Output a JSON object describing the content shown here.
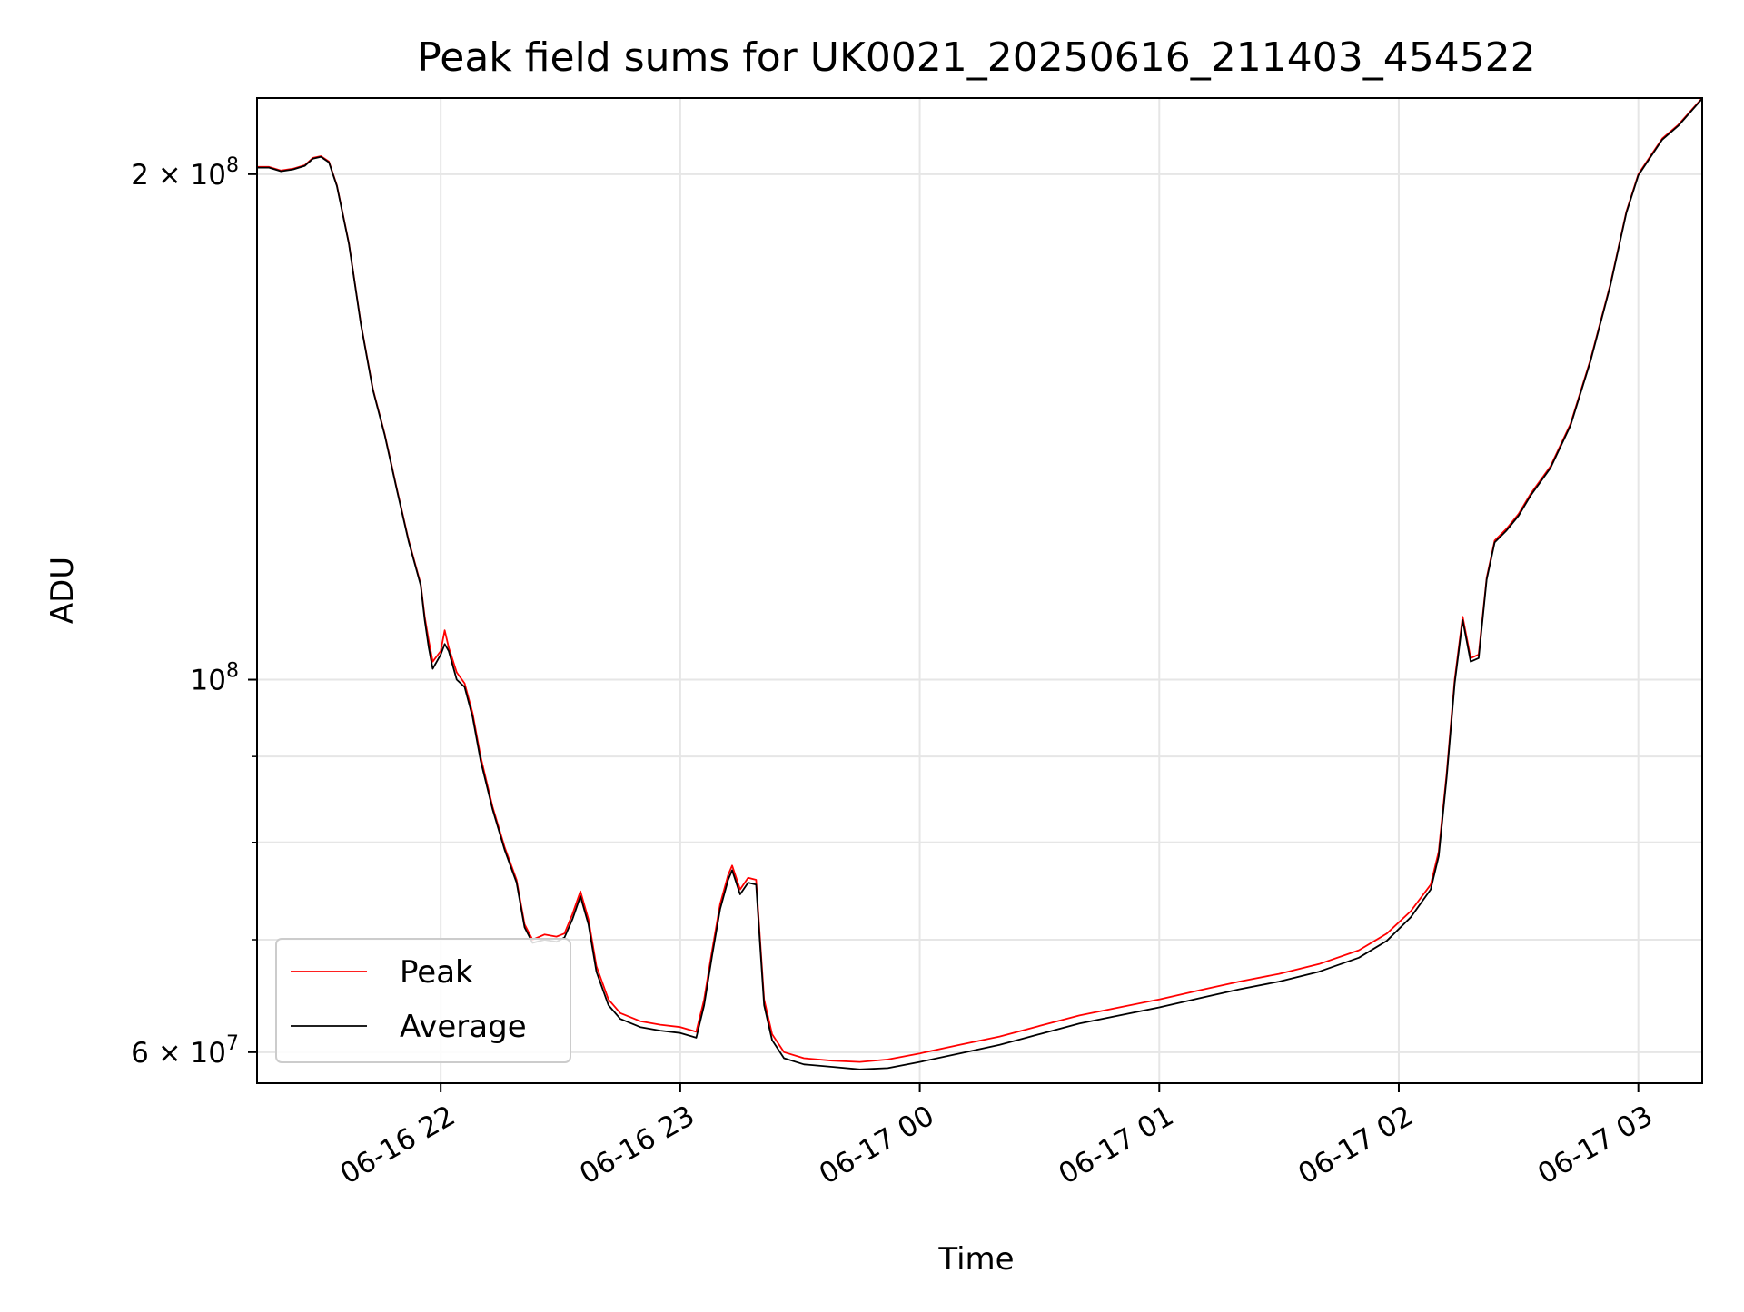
{
  "chart_data": {
    "type": "line",
    "title": "Peak field sums for UK0021_20250616_211403_454522",
    "xlabel": "Time",
    "ylabel": "ADU",
    "yscale": "log",
    "xlim": [
      "2025-06-16 21:14",
      "2025-06-17 03:16"
    ],
    "ylim": [
      57500000,
      222000000
    ],
    "grid": true,
    "legend_position": "lower-left",
    "x_ticks": [
      {
        "t": "2025-06-16 22:00",
        "label": "06-16 22"
      },
      {
        "t": "2025-06-16 23:00",
        "label": "06-16 23"
      },
      {
        "t": "2025-06-17 00:00",
        "label": "06-17 00"
      },
      {
        "t": "2025-06-17 01:00",
        "label": "06-17 01"
      },
      {
        "t": "2025-06-17 02:00",
        "label": "06-17 02"
      },
      {
        "t": "2025-06-17 03:00",
        "label": "06-17 03"
      }
    ],
    "y_ticks_major": [
      {
        "value": 60000000,
        "mantissa": "6 × 10",
        "exp": "7"
      },
      {
        "value": 100000000,
        "mantissa": "10",
        "exp": "8"
      },
      {
        "value": 200000000,
        "mantissa": "2 × 10",
        "exp": "8"
      }
    ],
    "y_ticks_minor": [
      70000000,
      80000000,
      90000000
    ],
    "series": [
      {
        "name": "Peak",
        "color": "#ff0000",
        "points": [
          [
            "2025-06-16 21:14",
            202000000
          ],
          [
            "2025-06-16 21:17",
            202000000
          ],
          [
            "2025-06-16 21:20",
            201000000
          ],
          [
            "2025-06-16 21:23",
            201500000
          ],
          [
            "2025-06-16 21:26",
            202500000
          ],
          [
            "2025-06-16 21:28",
            204500000
          ],
          [
            "2025-06-16 21:30",
            205000000
          ],
          [
            "2025-06-16 21:32",
            203500000
          ],
          [
            "2025-06-16 21:34",
            197000000
          ],
          [
            "2025-06-16 21:37",
            182000000
          ],
          [
            "2025-06-16 21:40",
            163000000
          ],
          [
            "2025-06-16 21:43",
            149000000
          ],
          [
            "2025-06-16 21:46",
            140000000
          ],
          [
            "2025-06-16 21:49",
            130000000
          ],
          [
            "2025-06-16 21:52",
            121000000
          ],
          [
            "2025-06-16 21:55",
            114000000
          ],
          [
            "2025-06-16 21:56",
            109000000
          ],
          [
            "2025-06-16 21:57",
            105500000
          ],
          [
            "2025-06-16 21:58",
            102500000
          ],
          [
            "2025-06-16 22:00",
            104000000
          ],
          [
            "2025-06-16 22:01",
            107000000
          ],
          [
            "2025-06-16 22:02",
            104500000
          ],
          [
            "2025-06-16 22:04",
            101000000
          ],
          [
            "2025-06-16 22:06",
            99500000
          ],
          [
            "2025-06-16 22:08",
            95500000
          ],
          [
            "2025-06-16 22:10",
            90000000
          ],
          [
            "2025-06-16 22:13",
            84000000
          ],
          [
            "2025-06-16 22:16",
            79500000
          ],
          [
            "2025-06-16 22:19",
            76000000
          ],
          [
            "2025-06-16 22:21",
            71500000
          ],
          [
            "2025-06-16 22:23",
            70000000
          ],
          [
            "2025-06-16 22:26",
            70500000
          ],
          [
            "2025-06-16 22:29",
            70300000
          ],
          [
            "2025-06-16 22:31",
            70600000
          ],
          [
            "2025-06-16 22:33",
            72500000
          ],
          [
            "2025-06-16 22:35",
            74800000
          ],
          [
            "2025-06-16 22:37",
            72000000
          ],
          [
            "2025-06-16 22:39",
            67500000
          ],
          [
            "2025-06-16 22:42",
            64500000
          ],
          [
            "2025-06-16 22:45",
            63300000
          ],
          [
            "2025-06-16 22:50",
            62600000
          ],
          [
            "2025-06-16 22:55",
            62300000
          ],
          [
            "2025-06-16 23:00",
            62100000
          ],
          [
            "2025-06-16 23:04",
            61700000
          ],
          [
            "2025-06-16 23:06",
            64500000
          ],
          [
            "2025-06-16 23:08",
            69000000
          ],
          [
            "2025-06-16 23:10",
            73500000
          ],
          [
            "2025-06-16 23:12",
            76500000
          ],
          [
            "2025-06-16 23:13",
            77500000
          ],
          [
            "2025-06-16 23:15",
            75000000
          ],
          [
            "2025-06-16 23:17",
            76200000
          ],
          [
            "2025-06-16 23:19",
            76000000
          ],
          [
            "2025-06-16 23:20",
            70000000
          ],
          [
            "2025-06-16 23:21",
            64500000
          ],
          [
            "2025-06-16 23:23",
            61500000
          ],
          [
            "2025-06-16 23:26",
            60000000
          ],
          [
            "2025-06-16 23:31",
            59500000
          ],
          [
            "2025-06-16 23:38",
            59300000
          ],
          [
            "2025-06-16 23:45",
            59200000
          ],
          [
            "2025-06-16 23:52",
            59400000
          ],
          [
            "2025-06-17 00:00",
            59900000
          ],
          [
            "2025-06-17 00:10",
            60600000
          ],
          [
            "2025-06-17 00:20",
            61300000
          ],
          [
            "2025-06-17 00:30",
            62200000
          ],
          [
            "2025-06-17 00:40",
            63100000
          ],
          [
            "2025-06-17 00:50",
            63800000
          ],
          [
            "2025-06-17 01:00",
            64500000
          ],
          [
            "2025-06-17 01:10",
            65300000
          ],
          [
            "2025-06-17 01:20",
            66100000
          ],
          [
            "2025-06-17 01:30",
            66800000
          ],
          [
            "2025-06-17 01:40",
            67700000
          ],
          [
            "2025-06-17 01:50",
            69000000
          ],
          [
            "2025-06-17 01:57",
            70600000
          ],
          [
            "2025-06-17 02:03",
            72800000
          ],
          [
            "2025-06-17 02:08",
            75500000
          ],
          [
            "2025-06-17 02:10",
            79000000
          ],
          [
            "2025-06-17 02:12",
            88000000
          ],
          [
            "2025-06-17 02:14",
            100000000
          ],
          [
            "2025-06-17 02:16",
            109000000
          ],
          [
            "2025-06-17 02:18",
            103000000
          ],
          [
            "2025-06-17 02:20",
            103500000
          ],
          [
            "2025-06-17 02:22",
            115000000
          ],
          [
            "2025-06-17 02:24",
            121000000
          ],
          [
            "2025-06-17 02:27",
            123000000
          ],
          [
            "2025-06-17 02:30",
            125500000
          ],
          [
            "2025-06-17 02:33",
            129000000
          ],
          [
            "2025-06-17 02:38",
            134000000
          ],
          [
            "2025-06-17 02:43",
            142000000
          ],
          [
            "2025-06-17 02:48",
            155000000
          ],
          [
            "2025-06-17 02:53",
            172000000
          ],
          [
            "2025-06-17 02:57",
            190000000
          ],
          [
            "2025-06-17 03:00",
            200000000
          ],
          [
            "2025-06-17 03:03",
            205000000
          ],
          [
            "2025-06-17 03:06",
            210000000
          ],
          [
            "2025-06-17 03:10",
            214000000
          ],
          [
            "2025-06-17 03:16",
            222000000
          ]
        ]
      },
      {
        "name": "Average",
        "color": "#000000",
        "points": [
          [
            "2025-06-16 21:14",
            201800000
          ],
          [
            "2025-06-16 21:17",
            201800000
          ],
          [
            "2025-06-16 21:20",
            200800000
          ],
          [
            "2025-06-16 21:23",
            201300000
          ],
          [
            "2025-06-16 21:26",
            202300000
          ],
          [
            "2025-06-16 21:28",
            204300000
          ],
          [
            "2025-06-16 21:30",
            204800000
          ],
          [
            "2025-06-16 21:32",
            203300000
          ],
          [
            "2025-06-16 21:34",
            196800000
          ],
          [
            "2025-06-16 21:37",
            181800000
          ],
          [
            "2025-06-16 21:40",
            162800000
          ],
          [
            "2025-06-16 21:43",
            148800000
          ],
          [
            "2025-06-16 21:46",
            139800000
          ],
          [
            "2025-06-16 21:49",
            129800000
          ],
          [
            "2025-06-16 21:52",
            120800000
          ],
          [
            "2025-06-16 21:55",
            113800000
          ],
          [
            "2025-06-16 21:56",
            108500000
          ],
          [
            "2025-06-16 21:57",
            104500000
          ],
          [
            "2025-06-16 21:58",
            101500000
          ],
          [
            "2025-06-16 22:00",
            103500000
          ],
          [
            "2025-06-16 22:01",
            105000000
          ],
          [
            "2025-06-16 22:02",
            104000000
          ],
          [
            "2025-06-16 22:04",
            100000000
          ],
          [
            "2025-06-16 22:06",
            99000000
          ],
          [
            "2025-06-16 22:08",
            95000000
          ],
          [
            "2025-06-16 22:10",
            89500000
          ],
          [
            "2025-06-16 22:13",
            83700000
          ],
          [
            "2025-06-16 22:16",
            79200000
          ],
          [
            "2025-06-16 22:19",
            75700000
          ],
          [
            "2025-06-16 22:21",
            71200000
          ],
          [
            "2025-06-16 22:23",
            69700000
          ],
          [
            "2025-06-16 22:26",
            70000000
          ],
          [
            "2025-06-16 22:29",
            69800000
          ],
          [
            "2025-06-16 22:31",
            70200000
          ],
          [
            "2025-06-16 22:33",
            72000000
          ],
          [
            "2025-06-16 22:35",
            74300000
          ],
          [
            "2025-06-16 22:37",
            71500000
          ],
          [
            "2025-06-16 22:39",
            67000000
          ],
          [
            "2025-06-16 22:42",
            64000000
          ],
          [
            "2025-06-16 22:45",
            62800000
          ],
          [
            "2025-06-16 22:50",
            62100000
          ],
          [
            "2025-06-16 22:55",
            61800000
          ],
          [
            "2025-06-16 23:00",
            61600000
          ],
          [
            "2025-06-16 23:04",
            61200000
          ],
          [
            "2025-06-16 23:06",
            64000000
          ],
          [
            "2025-06-16 23:08",
            68500000
          ],
          [
            "2025-06-16 23:10",
            73000000
          ],
          [
            "2025-06-16 23:12",
            76000000
          ],
          [
            "2025-06-16 23:13",
            77000000
          ],
          [
            "2025-06-16 23:15",
            74500000
          ],
          [
            "2025-06-16 23:17",
            75700000
          ],
          [
            "2025-06-16 23:19",
            75500000
          ],
          [
            "2025-06-16 23:20",
            69500000
          ],
          [
            "2025-06-16 23:21",
            64000000
          ],
          [
            "2025-06-16 23:23",
            61000000
          ],
          [
            "2025-06-16 23:26",
            59500000
          ],
          [
            "2025-06-16 23:31",
            59000000
          ],
          [
            "2025-06-16 23:38",
            58800000
          ],
          [
            "2025-06-16 23:45",
            58600000
          ],
          [
            "2025-06-16 23:52",
            58700000
          ],
          [
            "2025-06-17 00:00",
            59200000
          ],
          [
            "2025-06-17 00:10",
            59900000
          ],
          [
            "2025-06-17 00:20",
            60600000
          ],
          [
            "2025-06-17 00:30",
            61500000
          ],
          [
            "2025-06-17 00:40",
            62400000
          ],
          [
            "2025-06-17 00:50",
            63100000
          ],
          [
            "2025-06-17 01:00",
            63800000
          ],
          [
            "2025-06-17 01:10",
            64600000
          ],
          [
            "2025-06-17 01:20",
            65400000
          ],
          [
            "2025-06-17 01:30",
            66100000
          ],
          [
            "2025-06-17 01:40",
            67000000
          ],
          [
            "2025-06-17 01:50",
            68300000
          ],
          [
            "2025-06-17 01:57",
            69900000
          ],
          [
            "2025-06-17 02:03",
            72200000
          ],
          [
            "2025-06-17 02:08",
            75000000
          ],
          [
            "2025-06-17 02:10",
            78500000
          ],
          [
            "2025-06-17 02:12",
            87500000
          ],
          [
            "2025-06-17 02:14",
            99500000
          ],
          [
            "2025-06-17 02:16",
            108500000
          ],
          [
            "2025-06-17 02:18",
            102500000
          ],
          [
            "2025-06-17 02:20",
            103000000
          ],
          [
            "2025-06-17 02:22",
            114700000
          ],
          [
            "2025-06-17 02:24",
            120700000
          ],
          [
            "2025-06-17 02:27",
            122700000
          ],
          [
            "2025-06-17 02:30",
            125200000
          ],
          [
            "2025-06-17 02:33",
            128700000
          ],
          [
            "2025-06-17 02:38",
            133700000
          ],
          [
            "2025-06-17 02:43",
            141700000
          ],
          [
            "2025-06-17 02:48",
            154700000
          ],
          [
            "2025-06-17 02:53",
            171700000
          ],
          [
            "2025-06-17 02:57",
            189700000
          ],
          [
            "2025-06-17 03:00",
            199700000
          ],
          [
            "2025-06-17 03:03",
            204700000
          ],
          [
            "2025-06-17 03:06",
            209700000
          ],
          [
            "2025-06-17 03:10",
            213700000
          ],
          [
            "2025-06-17 03:16",
            221800000
          ]
        ]
      }
    ]
  }
}
